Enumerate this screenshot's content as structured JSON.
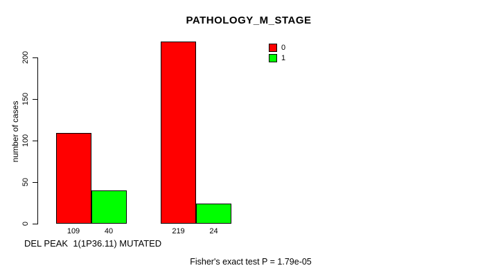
{
  "chart_data": {
    "type": "bar",
    "title": "PATHOLOGY_M_STAGE",
    "ylabel": "number of cases",
    "xlabel": "DEL PEAK  1(1P36.11) MUTATED",
    "annotation": "Fisher's exact test P = 1.79e-05",
    "series": [
      {
        "name": "0",
        "color": "#FF0000",
        "values": [
          109,
          219
        ]
      },
      {
        "name": "1",
        "color": "#00FF00",
        "values": [
          40,
          24
        ]
      }
    ],
    "bar_value_labels": [
      [
        109,
        40
      ],
      [
        219,
        24
      ]
    ],
    "yticks": [
      0,
      50,
      100,
      150,
      200
    ],
    "ylim": [
      0,
      220
    ],
    "grid": false,
    "legend_position": "top-right",
    "background": "#FFFFFF",
    "axis_color": "#000000"
  }
}
